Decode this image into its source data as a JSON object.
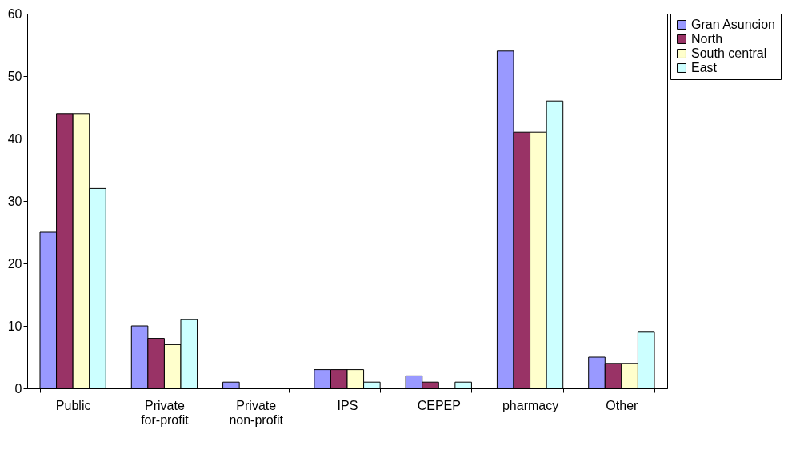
{
  "chart_data": {
    "type": "bar",
    "categories": [
      "Public",
      "Private for-profit",
      "Private non-profit",
      "IPS",
      "CEPEP",
      "pharmacy",
      "Other"
    ],
    "series": [
      {
        "name": "Gran Asuncion",
        "color": "#9999ff",
        "values": [
          25,
          10,
          1,
          3,
          2,
          54,
          5
        ]
      },
      {
        "name": "North",
        "color": "#993366",
        "values": [
          44,
          8,
          null,
          3,
          1,
          41,
          4
        ]
      },
      {
        "name": "South central",
        "color": "#ffffcc",
        "values": [
          44,
          7,
          null,
          3,
          null,
          41,
          4
        ]
      },
      {
        "name": "East",
        "color": "#ccffff",
        "values": [
          32,
          11,
          null,
          1,
          1,
          46,
          9
        ]
      }
    ],
    "ylim": [
      0,
      60
    ],
    "yticks": [
      0,
      10,
      20,
      30,
      40,
      50,
      60
    ],
    "grid": false,
    "legend": "right"
  }
}
